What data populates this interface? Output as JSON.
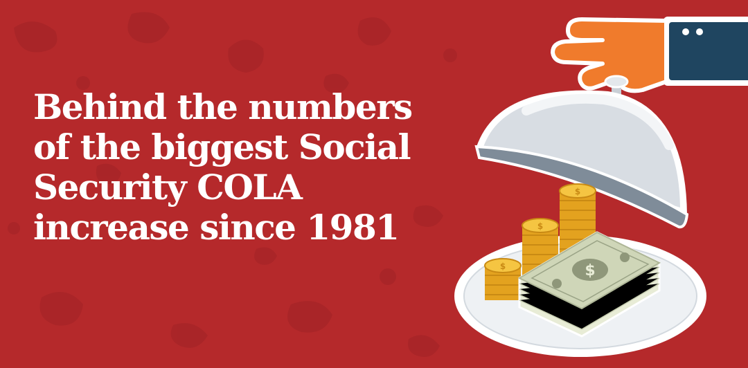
{
  "headline": {
    "lines": [
      "Behind the numbers",
      "of the biggest Social",
      "Security COLA",
      "increase since 1981"
    ]
  },
  "colors": {
    "background": "#b5292b",
    "texture": "#a32426",
    "text": "#ffffff",
    "hand": "#f07b2c",
    "sleeve": "#1f4560",
    "cloche": "#d8dde3",
    "coin": "#f2b82a",
    "cash": "#cfd6b8"
  },
  "illustration": {
    "icons": [
      "hand-icon",
      "sleeve-icon",
      "cloche-icon",
      "coin-stack-icon",
      "cash-bundle-icon",
      "dollar-sign-icon",
      "serving-plate-icon"
    ]
  }
}
